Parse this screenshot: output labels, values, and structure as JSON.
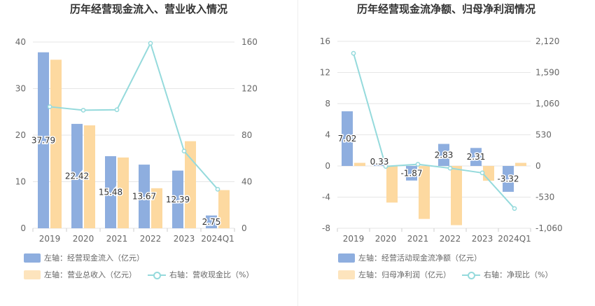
{
  "chart_data": [
    {
      "type": "bar",
      "title": "历年经营现金流入、营业收入情况",
      "categories": [
        "2019",
        "2020",
        "2021",
        "2022",
        "2023",
        "2024Q1"
      ],
      "left_axis": {
        "ylim": [
          0,
          40
        ],
        "ticks": [
          "0",
          "10",
          "20",
          "30",
          "40"
        ]
      },
      "right_axis": {
        "ylim": [
          0,
          160
        ],
        "ticks": [
          "0",
          "40",
          "80",
          "120",
          "160"
        ]
      },
      "series": [
        {
          "name": "左轴：经营现金流入（亿元）",
          "axis": "left",
          "kind": "bar",
          "color": "#8eaedf",
          "values": [
            37.79,
            22.42,
            15.48,
            13.67,
            12.39,
            2.75
          ],
          "labels": [
            "37.79",
            "22.42",
            "15.48",
            "13.67",
            "12.39",
            "2.75"
          ]
        },
        {
          "name": "左轴：营业总收入（亿元）",
          "axis": "left",
          "kind": "bar",
          "color": "#fdd9a0",
          "values": [
            36.2,
            22.1,
            15.2,
            8.6,
            18.7,
            8.2
          ]
        },
        {
          "name": "右轴：营收现金比（%）",
          "axis": "right",
          "kind": "line",
          "color": "#95dadc",
          "values": [
            104.4,
            101.4,
            101.8,
            158.9,
            66.3,
            33.5
          ]
        }
      ],
      "legend_position": "bottom-left",
      "grid": true
    },
    {
      "type": "bar",
      "title": "历年经营现金流净额、归母净利润情况",
      "categories": [
        "2019",
        "2020",
        "2021",
        "2022",
        "2023",
        "2024Q1"
      ],
      "left_axis": {
        "ylim": [
          -8,
          16
        ],
        "ticks": [
          "-8",
          "-4",
          "0",
          "4",
          "8",
          "12",
          "16"
        ]
      },
      "right_axis": {
        "ylim": [
          -1060,
          2120
        ],
        "ticks": [
          "-1,060",
          "-530",
          "0",
          "530",
          "1,060",
          "1,590",
          "2,120"
        ]
      },
      "series": [
        {
          "name": "左轴：经营活动现金流净额（亿元）",
          "axis": "left",
          "kind": "bar",
          "color": "#8eaedf",
          "values": [
            7.02,
            0.33,
            -1.87,
            2.83,
            2.31,
            -3.32
          ],
          "labels": [
            "7.02",
            "0.33",
            "-1.87",
            "2.83",
            "2.31",
            "-3.32"
          ]
        },
        {
          "name": "左轴：归母净利润（亿元）",
          "axis": "left",
          "kind": "bar",
          "color": "#fdd9a0",
          "values": [
            0.4,
            -4.7,
            -6.8,
            -7.6,
            -1.9,
            0.4
          ]
        },
        {
          "name": "右轴：净现比（%）",
          "axis": "right",
          "kind": "line",
          "color": "#95dadc",
          "values": [
            1916,
            -8,
            28,
            -38,
            -118,
            -724
          ]
        }
      ],
      "legend_position": "bottom-left",
      "grid": true
    }
  ]
}
